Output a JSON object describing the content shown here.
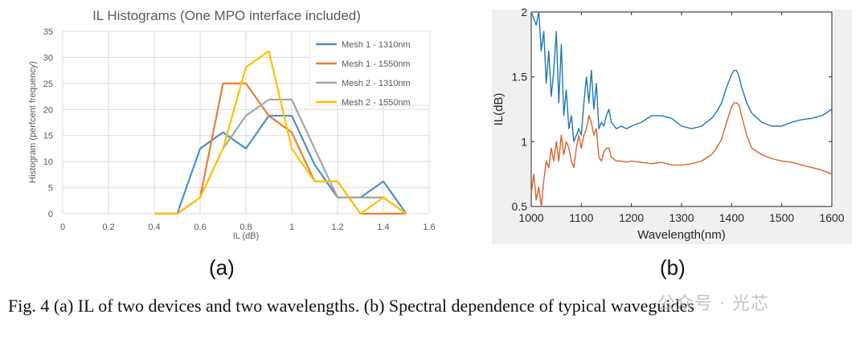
{
  "chart_data": [
    {
      "type": "line",
      "title": "IL Histograms (One MPO interface included)",
      "xlabel": "IL (dB)",
      "ylabel": "Histogram (perfcent frequency)",
      "xlim": [
        0,
        1.6
      ],
      "ylim": [
        0,
        35
      ],
      "xticks": [
        "0",
        "0.2",
        "0.4",
        "0.6",
        "0.8",
        "1",
        "1.2",
        "1.4",
        "1.6"
      ],
      "yticks": [
        "0",
        "5",
        "10",
        "15",
        "20",
        "25",
        "30",
        "35"
      ],
      "grid": true,
      "legend_position": "top-right",
      "x": [
        0.4,
        0.5,
        0.6,
        0.7,
        0.8,
        0.9,
        1.0,
        1.1,
        1.2,
        1.3,
        1.4,
        1.5
      ],
      "series": [
        {
          "name": "Mesh 1 - 1310nm",
          "color": "#4a90c8",
          "values": [
            0,
            0,
            12.5,
            15.6,
            12.5,
            18.8,
            18.8,
            9.4,
            3.1,
            3.1,
            6.2,
            0
          ]
        },
        {
          "name": "Mesh 1 - 1550nm",
          "color": "#ed7d31",
          "values": [
            0,
            0,
            3.1,
            25.0,
            25.0,
            18.8,
            15.6,
            6.2,
            6.2,
            0,
            0,
            0
          ]
        },
        {
          "name": "Mesh 2 - 1310nm",
          "color": "#a5a5a5",
          "values": [
            0,
            0,
            3.1,
            12.5,
            18.8,
            21.9,
            21.9,
            12.5,
            3.1,
            3.1,
            3.1,
            0
          ]
        },
        {
          "name": "Mesh 2 - 1550nm",
          "color": "#ffc000",
          "values": [
            0,
            0,
            3.1,
            12.5,
            28.1,
            31.2,
            12.5,
            6.2,
            6.2,
            0,
            3.1,
            0
          ]
        }
      ]
    },
    {
      "type": "line",
      "title": "",
      "xlabel": "Wavelength(nm)",
      "ylabel": "IL(dB)",
      "xlim": [
        1000,
        1600
      ],
      "ylim": [
        0.5,
        2
      ],
      "xticks": [
        "1000",
        "1100",
        "1200",
        "1300",
        "1400",
        "1500",
        "1600"
      ],
      "yticks": [
        "0.5",
        "1",
        "1.5",
        "2"
      ],
      "grid": false,
      "series": [
        {
          "color": "#1f77b4",
          "x": [
            1000,
            1005,
            1010,
            1015,
            1020,
            1025,
            1030,
            1035,
            1040,
            1045,
            1050,
            1055,
            1060,
            1065,
            1070,
            1075,
            1080,
            1085,
            1090,
            1095,
            1100,
            1105,
            1110,
            1115,
            1120,
            1125,
            1130,
            1135,
            1140,
            1145,
            1150,
            1155,
            1160,
            1170,
            1180,
            1190,
            1200,
            1220,
            1240,
            1260,
            1280,
            1300,
            1320,
            1340,
            1360,
            1370,
            1380,
            1390,
            1400,
            1405,
            1410,
            1415,
            1420,
            1430,
            1440,
            1460,
            1480,
            1500,
            1520,
            1540,
            1560,
            1580,
            1600
          ],
          "values": [
            2.0,
            1.95,
            1.9,
            2.0,
            1.7,
            1.85,
            1.45,
            1.7,
            1.35,
            1.55,
            1.85,
            1.3,
            1.75,
            1.2,
            1.4,
            1.1,
            1.2,
            1.0,
            1.05,
            1.1,
            1.05,
            1.3,
            1.5,
            1.3,
            1.55,
            1.25,
            1.45,
            1.1,
            1.15,
            1.12,
            1.2,
            1.25,
            1.15,
            1.1,
            1.12,
            1.1,
            1.12,
            1.15,
            1.2,
            1.2,
            1.18,
            1.12,
            1.1,
            1.12,
            1.18,
            1.23,
            1.3,
            1.42,
            1.52,
            1.55,
            1.55,
            1.5,
            1.42,
            1.3,
            1.22,
            1.15,
            1.12,
            1.12,
            1.15,
            1.17,
            1.18,
            1.2,
            1.25
          ]
        },
        {
          "color": "#d9622b",
          "x": [
            1000,
            1005,
            1010,
            1015,
            1020,
            1025,
            1030,
            1035,
            1040,
            1045,
            1050,
            1055,
            1060,
            1065,
            1070,
            1075,
            1080,
            1085,
            1090,
            1095,
            1100,
            1105,
            1110,
            1115,
            1120,
            1125,
            1130,
            1135,
            1140,
            1145,
            1150,
            1155,
            1160,
            1170,
            1180,
            1190,
            1200,
            1220,
            1240,
            1260,
            1280,
            1300,
            1320,
            1340,
            1360,
            1370,
            1380,
            1390,
            1400,
            1405,
            1410,
            1415,
            1420,
            1430,
            1440,
            1460,
            1480,
            1500,
            1520,
            1540,
            1560,
            1580,
            1600
          ],
          "values": [
            0.6,
            0.75,
            0.55,
            0.65,
            0.5,
            0.7,
            0.85,
            0.8,
            0.95,
            0.85,
            1.0,
            0.85,
            1.05,
            0.9,
            1.0,
            0.95,
            0.85,
            0.8,
            0.95,
            1.05,
            0.95,
            1.05,
            1.1,
            1.2,
            1.15,
            1.05,
            1.1,
            0.88,
            0.85,
            0.92,
            0.95,
            0.95,
            0.88,
            0.85,
            0.85,
            0.84,
            0.85,
            0.84,
            0.83,
            0.84,
            0.82,
            0.82,
            0.83,
            0.85,
            0.9,
            0.95,
            1.02,
            1.15,
            1.27,
            1.3,
            1.3,
            1.28,
            1.2,
            1.05,
            0.95,
            0.9,
            0.87,
            0.85,
            0.84,
            0.82,
            0.8,
            0.78,
            0.75
          ]
        }
      ]
    }
  ],
  "labels": {
    "panel_a": "(a)",
    "panel_b": "(b)"
  },
  "caption": "Fig. 4 (a) IL of two devices and two wavelengths. (b) Spectral dependence of typical waveguides",
  "watermark": "公众号 · 光芯"
}
